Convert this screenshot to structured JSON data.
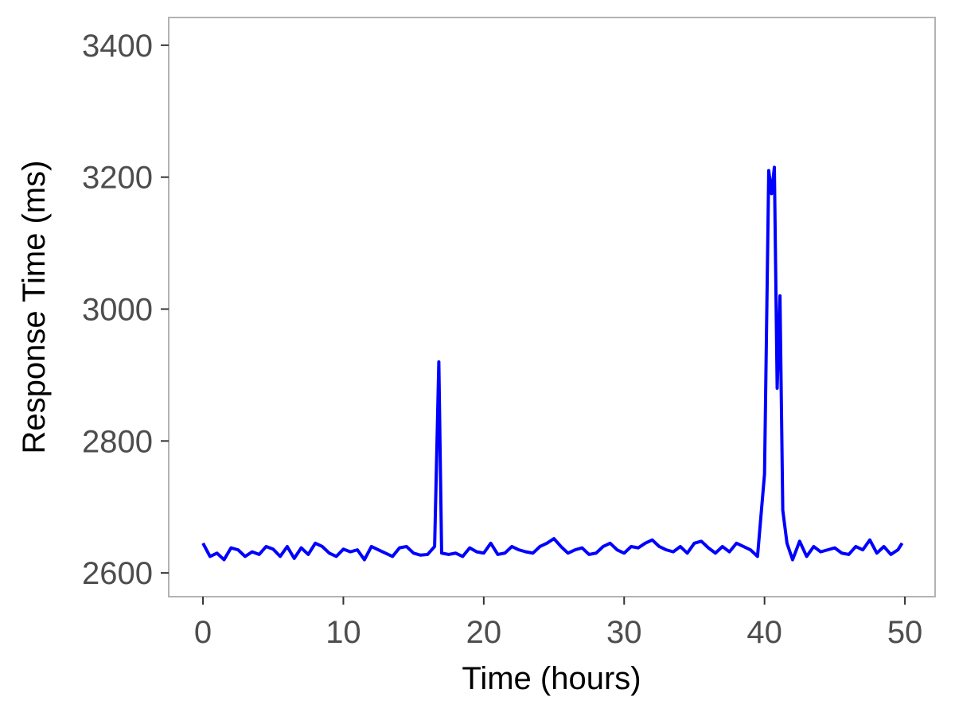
{
  "chart_data": {
    "type": "line",
    "x_label": "Time (hours)",
    "y_label": "Response Time (ms)",
    "x": [
      0,
      0.5,
      1,
      1.5,
      2,
      2.5,
      3,
      3.5,
      4,
      4.5,
      5,
      5.5,
      6,
      6.5,
      7,
      7.5,
      8,
      8.5,
      9,
      9.5,
      10,
      10.5,
      11,
      11.5,
      12,
      12.5,
      13,
      13.5,
      14,
      14.5,
      15,
      15.5,
      16,
      16.5,
      16.8,
      17,
      17.5,
      18,
      18.5,
      19,
      19.5,
      20,
      20.5,
      21,
      21.5,
      22,
      22.5,
      23,
      23.5,
      24,
      24.5,
      25,
      25.5,
      26,
      26.5,
      27,
      27.5,
      28,
      28.5,
      29,
      29.5,
      30,
      30.5,
      31,
      31.5,
      32,
      32.5,
      33,
      33.5,
      34,
      34.5,
      35,
      35.5,
      36,
      36.5,
      37,
      37.5,
      38,
      38.5,
      39,
      39.5,
      40,
      40.3,
      40.5,
      40.7,
      40.9,
      41.1,
      41.3,
      41.6,
      42,
      42.5,
      43,
      43.5,
      44,
      44.5,
      45,
      45.5,
      46,
      46.5,
      47,
      47.5,
      48,
      48.5,
      49,
      49.5,
      49.8
    ],
    "series": [
      {
        "color": "#0000ff",
        "values": [
          2645,
          2625,
          2630,
          2620,
          2638,
          2635,
          2625,
          2632,
          2628,
          2640,
          2636,
          2625,
          2640,
          2622,
          2638,
          2628,
          2645,
          2640,
          2630,
          2625,
          2636,
          2632,
          2635,
          2620,
          2640,
          2635,
          2630,
          2625,
          2638,
          2640,
          2630,
          2627,
          2628,
          2640,
          2920,
          2630,
          2628,
          2630,
          2625,
          2638,
          2632,
          2630,
          2645,
          2628,
          2630,
          2640,
          2635,
          2632,
          2630,
          2640,
          2645,
          2652,
          2640,
          2630,
          2635,
          2638,
          2628,
          2630,
          2640,
          2645,
          2635,
          2630,
          2640,
          2638,
          2645,
          2650,
          2640,
          2635,
          2632,
          2640,
          2630,
          2645,
          2648,
          2638,
          2630,
          2640,
          2632,
          2645,
          2640,
          2635,
          2625,
          2750,
          3210,
          3175,
          3215,
          2880,
          3020,
          2695,
          2645,
          2620,
          2648,
          2625,
          2640,
          2632,
          2635,
          2638,
          2630,
          2628,
          2640,
          2635,
          2650,
          2630,
          2640,
          2628,
          2635,
          2645
        ]
      }
    ],
    "xlim": [
      -2.44,
      52.15
    ],
    "ylim": [
      2564,
      3442
    ],
    "xticks": [
      0,
      10,
      20,
      30,
      40,
      50
    ],
    "yticks": [
      2600,
      2800,
      3000,
      3200,
      3400
    ]
  }
}
